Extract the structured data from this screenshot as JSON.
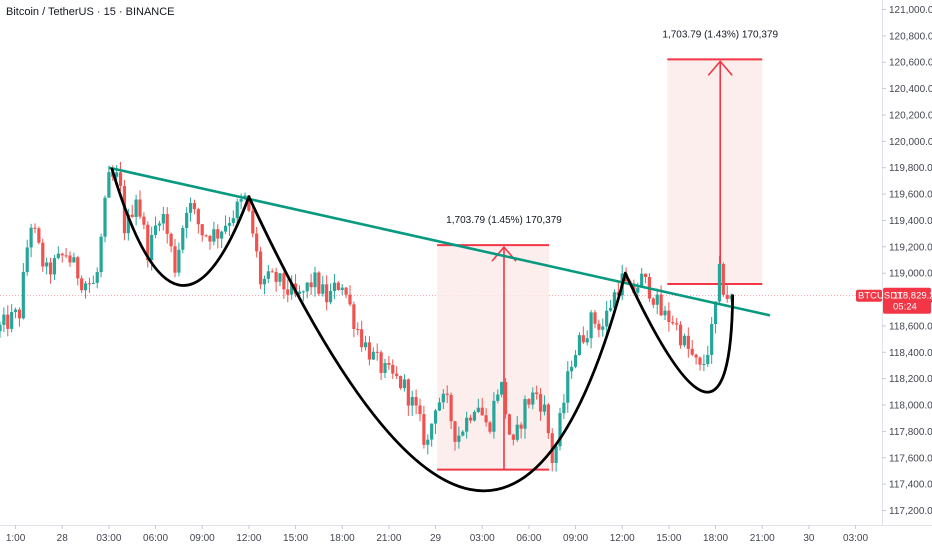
{
  "chart_data": {
    "type": "candlestick",
    "title": "Bitcoin / TetherUS · 15 · BINANCE",
    "symbol": "BTCUSDT",
    "last_price": "118,829.23",
    "countdown": "05:24",
    "ylim": [
      117100,
      121050
    ],
    "y_ticks": [
      "121,000.00",
      "120,800.00",
      "120,600.00",
      "120,400.00",
      "120,200.00",
      "120,000.00",
      "119,800.00",
      "119,600.00",
      "119,400.00",
      "119,200.00",
      "119,000.00",
      "118,800.00",
      "118,600.00",
      "118,400.00",
      "118,200.00",
      "118,000.00",
      "117,800.00",
      "117,600.00",
      "117,400.00",
      "117,200.00"
    ],
    "x_ticks": [
      "1:00",
      "28",
      "03:00",
      "06:00",
      "09:00",
      "12:00",
      "15:00",
      "18:00",
      "21:00",
      "29",
      "03:00",
      "06:00",
      "09:00",
      "12:00",
      "15:00",
      "18:00",
      "21:00",
      "30",
      "03:00"
    ],
    "x_tick_hours": [
      -3,
      0,
      3,
      6,
      9,
      12,
      15,
      18,
      21,
      24,
      27,
      30,
      33,
      36,
      39,
      42,
      45,
      48,
      51
    ],
    "xlim_hours": [
      -4.0,
      52.7
    ],
    "colors": {
      "up": "#26a69a",
      "down": "#ef5350",
      "trendline": "#089981",
      "pattern": "#000000",
      "measure": "#f23645",
      "measure_fill": "#fce8e8",
      "last_price": "#f23645"
    },
    "trendline": {
      "start": [
        3.0,
        119800
      ],
      "end": [
        45.5,
        118680
      ]
    },
    "cup_left": {
      "points": [
        [
          3.2,
          119790
        ],
        [
          7.5,
          118910
        ],
        [
          12.0,
          119580
        ]
      ]
    },
    "cup_main": {
      "points": [
        [
          12.0,
          119580
        ],
        [
          26.2,
          117360
        ],
        [
          36.2,
          119000
        ]
      ]
    },
    "handle": {
      "points": [
        [
          36.2,
          119000
        ],
        [
          41.3,
          118100
        ],
        [
          43.1,
          118830
        ]
      ]
    },
    "measurements": [
      {
        "label": "1,703.79 (1.45%) 170,379",
        "x_range": [
          24.1,
          31.3
        ],
        "y_low": 117510,
        "y_high": 119213,
        "arrow_x": 28.4
      },
      {
        "label": "1,703.79 (1.43%) 170,379",
        "x_range": [
          38.9,
          45.0
        ],
        "y_low": 118918,
        "y_high": 120622,
        "arrow_x": 42.3
      }
    ],
    "anchors": [
      [
        -4,
        118560
      ],
      [
        -2.5,
        118700
      ],
      [
        -1.8,
        119400
      ],
      [
        -0.8,
        119000
      ],
      [
        0.5,
        119150
      ],
      [
        1.5,
        118950
      ],
      [
        2.4,
        118900
      ],
      [
        3.2,
        119700
      ],
      [
        3.9,
        119720
      ],
      [
        4.3,
        119300
      ],
      [
        5.0,
        119600
      ],
      [
        5.8,
        119150
      ],
      [
        6.6,
        119500
      ],
      [
        7.5,
        119050
      ],
      [
        8.3,
        119550
      ],
      [
        9.3,
        119300
      ],
      [
        10.2,
        119300
      ],
      [
        11.2,
        119450
      ],
      [
        12.0,
        119560
      ],
      [
        12.6,
        119250
      ],
      [
        13.0,
        118940
      ],
      [
        14.0,
        118950
      ],
      [
        15.4,
        118800
      ],
      [
        16.4,
        118950
      ],
      [
        17.3,
        118800
      ],
      [
        18.2,
        118950
      ],
      [
        19.0,
        118650
      ],
      [
        19.5,
        118500
      ],
      [
        20.3,
        118350
      ],
      [
        21.0,
        118250
      ],
      [
        22.2,
        118150
      ],
      [
        23.0,
        117950
      ],
      [
        23.7,
        117680
      ],
      [
        24.3,
        118050
      ],
      [
        25.0,
        118000
      ],
      [
        25.6,
        117750
      ],
      [
        26.3,
        117900
      ],
      [
        26.9,
        118050
      ],
      [
        27.6,
        117800
      ],
      [
        28.4,
        118200
      ],
      [
        29.2,
        117650
      ],
      [
        30.0,
        118000
      ],
      [
        30.7,
        118100
      ],
      [
        31.3,
        117950
      ],
      [
        31.8,
        117550
      ],
      [
        32.3,
        117900
      ],
      [
        33.0,
        118350
      ],
      [
        33.6,
        118500
      ],
      [
        34.3,
        118650
      ],
      [
        35.0,
        118600
      ],
      [
        35.6,
        118800
      ],
      [
        36.2,
        118960
      ],
      [
        36.8,
        118840
      ],
      [
        37.5,
        118950
      ],
      [
        38.1,
        118870
      ],
      [
        38.8,
        118680
      ],
      [
        39.5,
        118650
      ],
      [
        40.2,
        118480
      ],
      [
        40.8,
        118350
      ],
      [
        41.3,
        118250
      ],
      [
        41.7,
        118400
      ],
      [
        42.1,
        118600
      ],
      [
        42.5,
        118990
      ],
      [
        42.9,
        118829
      ]
    ]
  }
}
